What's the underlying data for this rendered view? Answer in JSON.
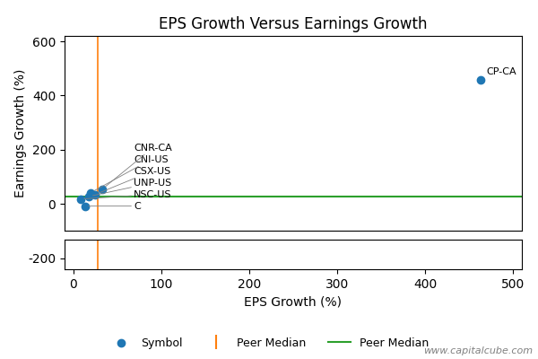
{
  "chart_data": [
    {
      "type": "scatter",
      "title": "EPS Growth Versus Earnings Growth",
      "ylabel": "Earnings Growth (%)",
      "xlim": [
        -10,
        510
      ],
      "ylim": [
        -100,
        620
      ],
      "yticks": [
        0,
        200,
        400,
        600
      ],
      "tick_labels": "y",
      "series": [
        {
          "name": "Symbol",
          "x": [
            463,
            33,
            20,
            25,
            8,
            13,
            18
          ],
          "values": [
            458,
            55,
            42,
            35,
            18,
            -8,
            28
          ],
          "point_labels": [
            "CP-CA",
            "CNR-CA",
            "CNI-US",
            "CSX-US",
            "NSC-US",
            "C",
            "UNP-US"
          ]
        }
      ],
      "vlines": [
        {
          "name": "Peer Median",
          "value": 28
        }
      ],
      "hlines": [
        {
          "name": "Peer Median",
          "value": 28
        }
      ],
      "legend": "lower center",
      "watermark": "www.capitalcube.com"
    },
    {
      "type": "scatter",
      "xlabel": "EPS Growth (%)",
      "xlim": [
        -10,
        510
      ],
      "xticks": [
        0,
        100,
        200,
        300,
        400,
        500
      ],
      "ylim": [
        -230,
        -150
      ],
      "yticks": [
        -200
      ],
      "vlines": [
        {
          "value": 28
        }
      ]
    }
  ]
}
